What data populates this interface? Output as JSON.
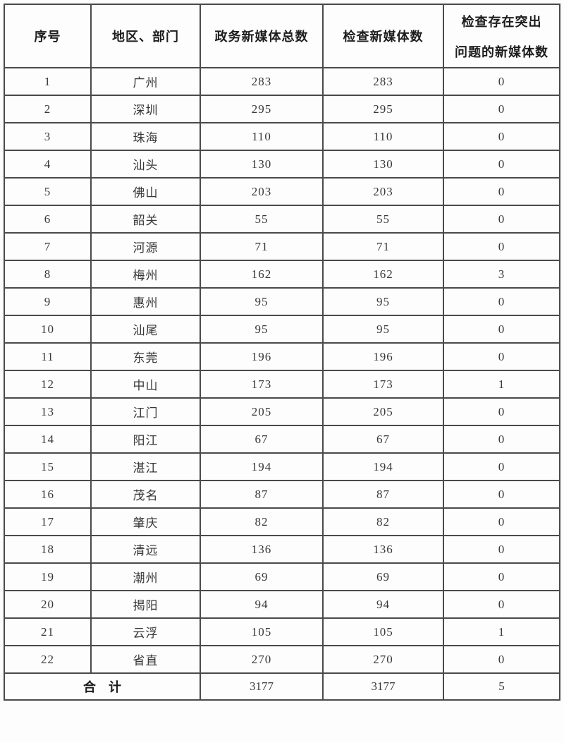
{
  "colors": {
    "background": "#fdfdfd",
    "border": "#4a4a4a",
    "header_text": "#1d1d1d",
    "body_text": "#373737"
  },
  "table": {
    "headers": {
      "col1": "序号",
      "col2": "地区、部门",
      "col3": "政务新媒体总数",
      "col4": "检查新媒体数",
      "col5_line1": "检查存在突出",
      "col5_line2": "问题的新媒体数"
    },
    "rows": [
      {
        "no": "1",
        "region": "广州",
        "total": "283",
        "checked": "283",
        "issues": "0"
      },
      {
        "no": "2",
        "region": "深圳",
        "total": "295",
        "checked": "295",
        "issues": "0"
      },
      {
        "no": "3",
        "region": "珠海",
        "total": "110",
        "checked": "110",
        "issues": "0"
      },
      {
        "no": "4",
        "region": "汕头",
        "total": "130",
        "checked": "130",
        "issues": "0"
      },
      {
        "no": "5",
        "region": "佛山",
        "total": "203",
        "checked": "203",
        "issues": "0"
      },
      {
        "no": "6",
        "region": "韶关",
        "total": "55",
        "checked": "55",
        "issues": "0"
      },
      {
        "no": "7",
        "region": "河源",
        "total": "71",
        "checked": "71",
        "issues": "0"
      },
      {
        "no": "8",
        "region": "梅州",
        "total": "162",
        "checked": "162",
        "issues": "3"
      },
      {
        "no": "9",
        "region": "惠州",
        "total": "95",
        "checked": "95",
        "issues": "0"
      },
      {
        "no": "10",
        "region": "汕尾",
        "total": "95",
        "checked": "95",
        "issues": "0"
      },
      {
        "no": "11",
        "region": "东莞",
        "total": "196",
        "checked": "196",
        "issues": "0"
      },
      {
        "no": "12",
        "region": "中山",
        "total": "173",
        "checked": "173",
        "issues": "1"
      },
      {
        "no": "13",
        "region": "江门",
        "total": "205",
        "checked": "205",
        "issues": "0"
      },
      {
        "no": "14",
        "region": "阳江",
        "total": "67",
        "checked": "67",
        "issues": "0"
      },
      {
        "no": "15",
        "region": "湛江",
        "total": "194",
        "checked": "194",
        "issues": "0"
      },
      {
        "no": "16",
        "region": "茂名",
        "total": "87",
        "checked": "87",
        "issues": "0"
      },
      {
        "no": "17",
        "region": "肇庆",
        "total": "82",
        "checked": "82",
        "issues": "0"
      },
      {
        "no": "18",
        "region": "清远",
        "total": "136",
        "checked": "136",
        "issues": "0"
      },
      {
        "no": "19",
        "region": "潮州",
        "total": "69",
        "checked": "69",
        "issues": "0"
      },
      {
        "no": "20",
        "region": "揭阳",
        "total": "94",
        "checked": "94",
        "issues": "0"
      },
      {
        "no": "21",
        "region": "云浮",
        "total": "105",
        "checked": "105",
        "issues": "1"
      },
      {
        "no": "22",
        "region": "省直",
        "total": "270",
        "checked": "270",
        "issues": "0"
      }
    ],
    "footer": {
      "label": "合　计",
      "total": "3177",
      "checked": "3177",
      "issues": "5"
    }
  }
}
